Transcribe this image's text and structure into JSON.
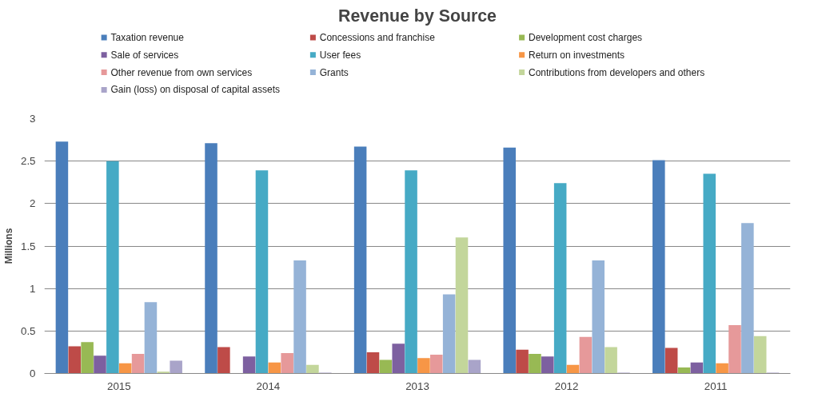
{
  "chart_data": {
    "type": "bar",
    "title": "Revenue by Source",
    "ylabel": "Millions",
    "categories": [
      "2015",
      "2014",
      "2013",
      "2012",
      "2011"
    ],
    "series": [
      {
        "name": "Taxation revenue",
        "color": "#4a7ebb",
        "values": [
          2.73,
          2.71,
          2.67,
          2.66,
          2.51
        ]
      },
      {
        "name": "Concessions and franchise",
        "color": "#be4b48",
        "values": [
          0.32,
          0.31,
          0.25,
          0.28,
          0.3
        ]
      },
      {
        "name": "Development cost charges",
        "color": "#98b954",
        "values": [
          0.37,
          0,
          0.16,
          0.23,
          0.07
        ]
      },
      {
        "name": "Sale of services",
        "color": "#7d60a0",
        "values": [
          0.21,
          0.2,
          0.35,
          0.2,
          0.13
        ]
      },
      {
        "name": "User fees",
        "color": "#46aac5",
        "values": [
          2.5,
          2.39,
          2.39,
          2.24,
          2.35
        ]
      },
      {
        "name": "Return on investments",
        "color": "#f79646",
        "values": [
          0.12,
          0.13,
          0.18,
          0.1,
          0.12
        ]
      },
      {
        "name": "Other revenue from own services",
        "color": "#e6999a",
        "values": [
          0.23,
          0.24,
          0.22,
          0.43,
          0.57
        ]
      },
      {
        "name": "Grants",
        "color": "#95b3d7",
        "values": [
          0.84,
          1.33,
          0.93,
          1.33,
          1.77
        ]
      },
      {
        "name": "Contributions from developers and others",
        "color": "#c3d69b",
        "values": [
          0.02,
          0.1,
          1.6,
          0.31,
          0.44
        ]
      },
      {
        "name": "Gain (loss) on disposal of capital assets",
        "color": "#a9a4c9",
        "values": [
          0.15,
          0.01,
          0.16,
          0.01,
          0.01
        ]
      }
    ],
    "ylim": [
      0,
      3
    ],
    "yticks": [
      0,
      0.5,
      1,
      1.5,
      2,
      2.5,
      3
    ],
    "grid": "y",
    "legend": "top"
  }
}
